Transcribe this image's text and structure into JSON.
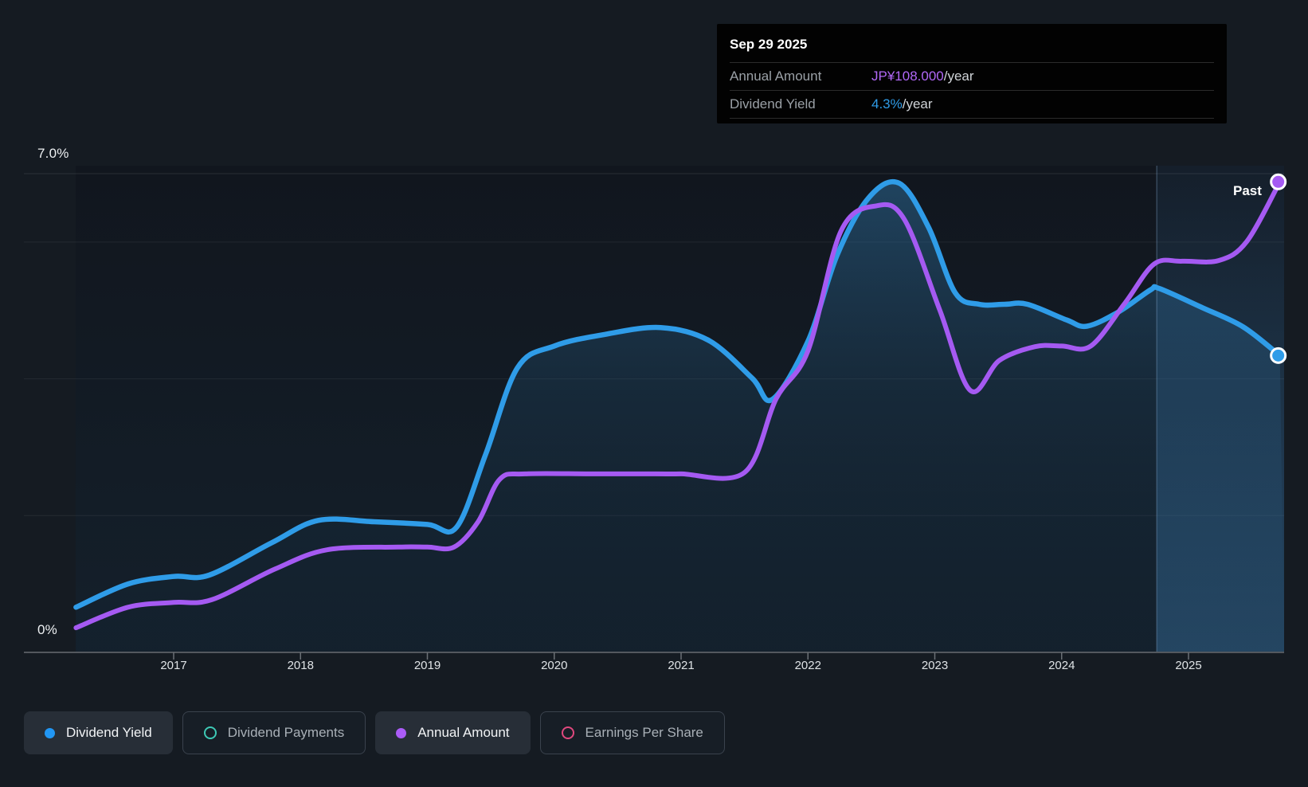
{
  "page": {
    "background": "#151b22"
  },
  "tooltip": {
    "date": "Sep 29 2025",
    "rows": [
      {
        "label": "Annual Amount",
        "value": "JP¥108.000",
        "suffix": "/year",
        "color": "#b168f7"
      },
      {
        "label": "Dividend Yield",
        "value": "4.3%",
        "suffix": "/year",
        "color": "#2f9ce8"
      }
    ]
  },
  "chart_data": {
    "type": "area",
    "y_axis": {
      "top_label": "7.0%",
      "bottom_label": "0%",
      "ylim": [
        0,
        7
      ],
      "unit": "%",
      "gridline_values": [
        7,
        6,
        4,
        2,
        0
      ]
    },
    "x_axis": {
      "tick_years": [
        2017,
        2018,
        2019,
        2020,
        2021,
        2022,
        2023,
        2024,
        2025
      ],
      "xlim": [
        2016.23,
        2025.75
      ]
    },
    "past_label": "Past",
    "past_region_start_year": 2024.75,
    "series": [
      {
        "name": "Dividend Yield",
        "color": "#2f9ce8",
        "unit": "%",
        "end_value": "4.3%/year",
        "points": [
          [
            2016.23,
            0.66
          ],
          [
            2016.64,
            1.0
          ],
          [
            2017.0,
            1.11
          ],
          [
            2017.28,
            1.13
          ],
          [
            2017.77,
            1.6
          ],
          [
            2018.14,
            1.93
          ],
          [
            2018.58,
            1.91
          ],
          [
            2019.0,
            1.87
          ],
          [
            2019.23,
            1.83
          ],
          [
            2019.46,
            2.9
          ],
          [
            2019.71,
            4.16
          ],
          [
            2020.0,
            4.48
          ],
          [
            2020.4,
            4.65
          ],
          [
            2020.84,
            4.75
          ],
          [
            2021.22,
            4.56
          ],
          [
            2021.56,
            4.01
          ],
          [
            2021.72,
            3.7
          ],
          [
            2022.0,
            4.55
          ],
          [
            2022.23,
            5.81
          ],
          [
            2022.48,
            6.65
          ],
          [
            2022.72,
            6.86
          ],
          [
            2022.95,
            6.22
          ],
          [
            2023.16,
            5.26
          ],
          [
            2023.35,
            5.09
          ],
          [
            2023.55,
            5.09
          ],
          [
            2023.73,
            5.09
          ],
          [
            2024.04,
            4.86
          ],
          [
            2024.2,
            4.77
          ],
          [
            2024.45,
            4.98
          ],
          [
            2024.7,
            5.3
          ],
          [
            2024.77,
            5.32
          ],
          [
            2025.11,
            5.04
          ],
          [
            2025.43,
            4.76
          ],
          [
            2025.72,
            4.34
          ]
        ]
      },
      {
        "name": "Annual Amount",
        "color": "#a55af2",
        "unit": "JP¥/year (plotted on % scale)",
        "end_value": "JP¥108.000/year",
        "points": [
          [
            2016.23,
            0.36
          ],
          [
            2016.64,
            0.66
          ],
          [
            2017.0,
            0.73
          ],
          [
            2017.3,
            0.77
          ],
          [
            2017.8,
            1.22
          ],
          [
            2018.21,
            1.5
          ],
          [
            2018.77,
            1.54
          ],
          [
            2019.0,
            1.54
          ],
          [
            2019.21,
            1.54
          ],
          [
            2019.4,
            1.91
          ],
          [
            2019.57,
            2.53
          ],
          [
            2019.77,
            2.61
          ],
          [
            2020.3,
            2.61
          ],
          [
            2020.8,
            2.61
          ],
          [
            2021.0,
            2.61
          ],
          [
            2021.5,
            2.63
          ],
          [
            2021.75,
            3.71
          ],
          [
            2022.0,
            4.41
          ],
          [
            2022.26,
            6.16
          ],
          [
            2022.54,
            6.53
          ],
          [
            2022.76,
            6.33
          ],
          [
            2023.04,
            5.0
          ],
          [
            2023.28,
            3.83
          ],
          [
            2023.51,
            4.27
          ],
          [
            2023.79,
            4.47
          ],
          [
            2024.0,
            4.48
          ],
          [
            2024.23,
            4.48
          ],
          [
            2024.5,
            5.11
          ],
          [
            2024.73,
            5.68
          ],
          [
            2024.95,
            5.72
          ],
          [
            2025.24,
            5.73
          ],
          [
            2025.46,
            6.01
          ],
          [
            2025.72,
            6.88
          ]
        ]
      }
    ]
  },
  "legend": {
    "items": [
      {
        "label": "Dividend Yield",
        "color": "#2196f3",
        "style": "filled",
        "active": true
      },
      {
        "label": "Dividend Payments",
        "color": "#3ec9b5",
        "style": "ring",
        "active": false
      },
      {
        "label": "Annual Amount",
        "color": "#ab5cf7",
        "style": "filled",
        "active": true
      },
      {
        "label": "Earnings Per Share",
        "color": "#e0487e",
        "style": "ring",
        "active": false
      }
    ]
  }
}
